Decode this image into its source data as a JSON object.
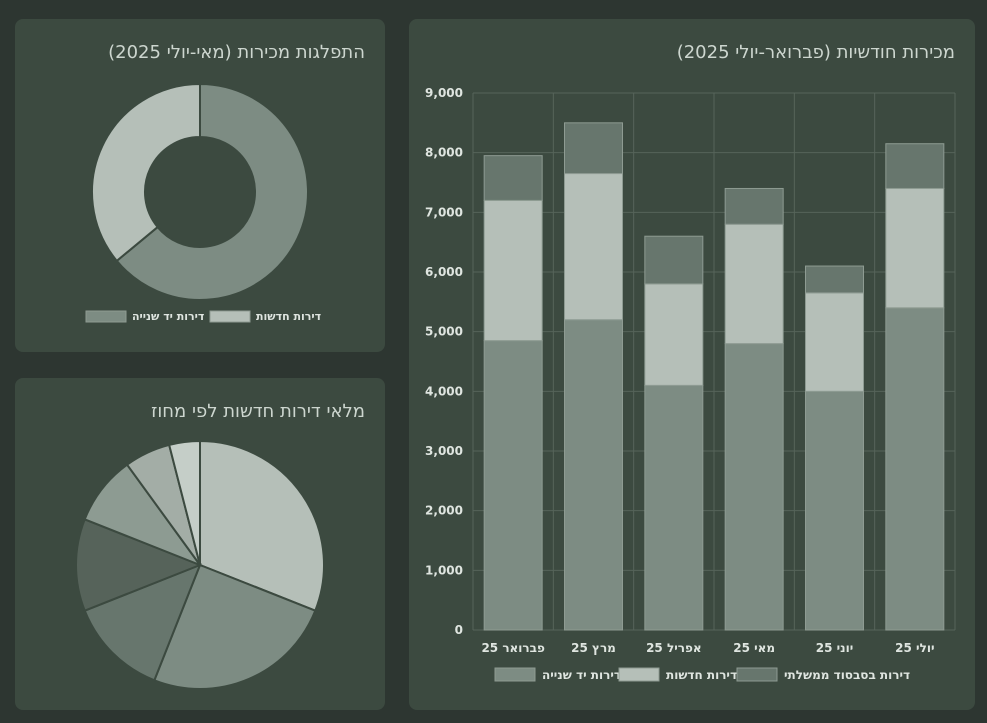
{
  "colors": {
    "background": "#2d3631",
    "card": "#3c4a40",
    "grid": "#56645a",
    "used": "#7d8c83",
    "new": "#b5bfb8",
    "subsidized": "#67766d"
  },
  "chart_data": [
    {
      "type": "bar",
      "stacked": true,
      "title": "מכירות חודשיות (פברואר-יולי 2025)",
      "categories": [
        "פברואר 25",
        "מרץ 25",
        "אפריל 25",
        "מאי 25",
        "יוני 25",
        "יולי 25"
      ],
      "series": [
        {
          "name": "דירות יד שנייה",
          "color": "#7d8c83",
          "values": [
            4850,
            5200,
            4100,
            4800,
            4000,
            5400
          ]
        },
        {
          "name": "דירות חדשות",
          "color": "#b5bfb8",
          "values": [
            2350,
            2450,
            1700,
            2000,
            1650,
            2000
          ]
        },
        {
          "name": "דירות בסבסוד ממשלתי",
          "color": "#67766d",
          "values": [
            750,
            850,
            800,
            600,
            450,
            750
          ]
        }
      ],
      "ylim": [
        0,
        9000
      ],
      "yticks": [
        0,
        1000,
        2000,
        3000,
        4000,
        5000,
        6000,
        7000,
        8000,
        9000
      ],
      "ytick_labels": [
        "0",
        "1,000",
        "2,000",
        "3,000",
        "4,000",
        "5,000",
        "6,000",
        "7,000",
        "8,000",
        "9,000"
      ],
      "legend_position": "bottom",
      "grid": true
    },
    {
      "type": "pie",
      "donut": true,
      "title": "התפלגות מכירות (מאי-יולי 2025)",
      "labels": [
        "דירות יד שנייה",
        "דירות חדשות"
      ],
      "values": [
        64,
        36
      ],
      "colors": [
        "#7d8c83",
        "#b5bfb8"
      ],
      "legend_position": "bottom"
    },
    {
      "type": "pie",
      "title": "מלאי דירות חדשות לפי מחוז",
      "values": [
        31,
        25,
        13,
        12,
        9,
        6,
        4
      ],
      "colors": [
        "#b5bfb8",
        "#7d8c83",
        "#67766d",
        "#56635a",
        "#8d9b92",
        "#a3ada6",
        "#c5cec8"
      ]
    }
  ]
}
